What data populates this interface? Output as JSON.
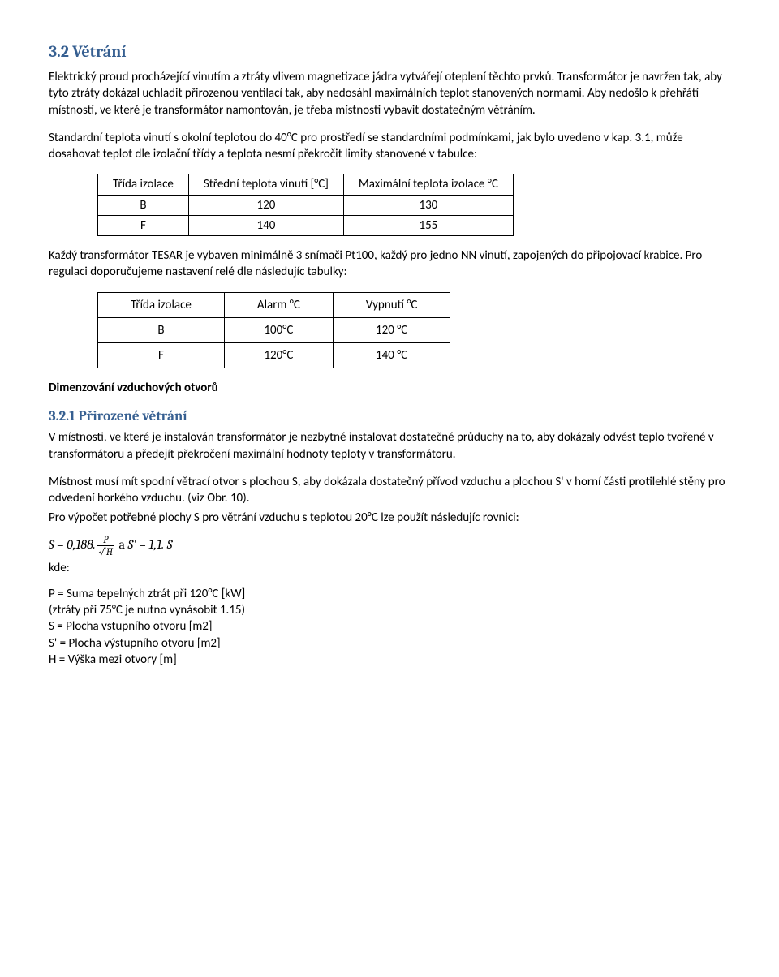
{
  "h2": "3.2  Větrání",
  "p1": "Elektrický proud procházející vinutím a ztráty vlivem magnetizace jádra vytvářejí oteplení těchto prvků. Transformátor je navržen tak, aby tyto ztráty dokázal uchladit přirozenou ventilací tak, aby nedosáhl maximálních teplot stanovených normami. Aby nedošlo k přehřátí místnosti, ve které je transformátor namontován, je třeba místnosti vybavit dostatečným větráním.",
  "p2": "Standardní teplota vinutí s okolní teplotou do 40°C pro prostředí se standardními podmínkami, jak bylo uvedeno v kap. 3.1, může dosahovat teplot dle izolační třídy a teplota nesmí překročit limity stanovené v tabulce:",
  "table1": {
    "headers": [
      "Třída izolace",
      "Střední teplota vinutí [°C]",
      "Maximální teplota izolace °C"
    ],
    "rows": [
      [
        "B",
        "120",
        "130"
      ],
      [
        "F",
        "140",
        "155"
      ]
    ]
  },
  "p3": "Každý transformátor TESAR je vybaven minimálně 3 snímači Pt100, každý pro jedno NN vinutí, zapojených do připojovací krabice. Pro regulaci  doporučujeme nastavení relé dle následujíc tabulky:",
  "table2": {
    "headers": [
      "Třída izolace",
      "Alarm °C",
      "Vypnutí °C"
    ],
    "rows": [
      [
        "B",
        "100°C",
        "120 °C"
      ],
      [
        "F",
        "120°C",
        "140 °C"
      ]
    ]
  },
  "p4": "Dimenzování vzduchových otvorů",
  "h3": "3.2.1  Přirozené větrání",
  "p5": "V místnosti, ve které je instalován transformátor je nezbytné instalovat dostatečné průduchy na to, aby dokázaly odvést teplo tvořené v transformátoru a předejít překročení maximální hodnoty teploty v transformátoru.",
  "p6a": "Místnost musí mít spodní větrací otvor s plochou S, aby dokázala dostatečný přívod vzduchu a plochou S' v horní části protilehlé stěny pro odvedení horkého vzduchu. (viz Obr. 10).",
  "p6b": "Pro výpočet potřebné plochy S pro větrání vzduchu s teplotou 20°C lze použít následujíc rovnici:",
  "formula": {
    "lhs1": "S  =  0,188.",
    "fracNum": "P",
    "fracDen": "√H",
    "mid": "   a   ",
    "lhs2": "S'  =  1,1. S"
  },
  "kde": "kde:",
  "defs": [
    "P = Suma tepelných ztrát při 120°C [kW]",
    "(ztráty při 75°C je nutno vynásobit 1.15)",
    "S = Plocha vstupního otvoru [m2]",
    "S' = Plocha výstupního otvoru [m2]",
    "H = Výška mezi otvory [m]"
  ],
  "colors": {
    "heading": "#365f91",
    "text": "#000000",
    "background": "#ffffff",
    "border": "#000000"
  },
  "typography": {
    "body_family": "Calibri",
    "heading_family": "Cambria",
    "body_size_pt": 11,
    "h2_size_pt": 15,
    "h3_size_pt": 13
  }
}
